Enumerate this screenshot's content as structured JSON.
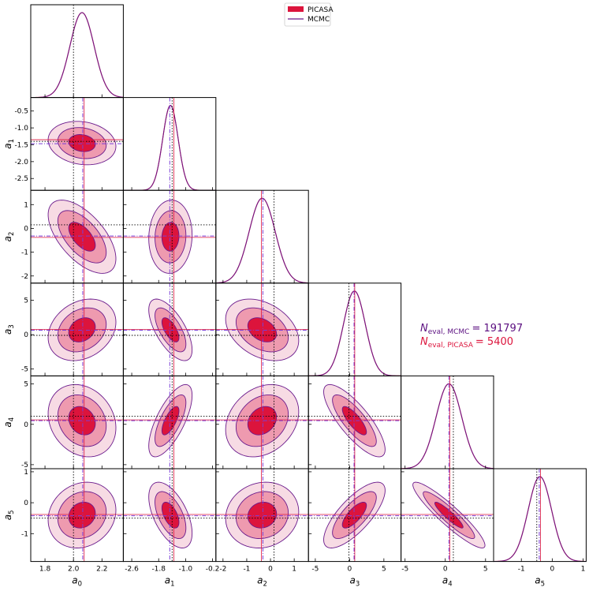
{
  "chart_data": {
    "type": "corner",
    "params": [
      "a_0",
      "a_1",
      "a_2",
      "a_3",
      "a_4",
      "a_5"
    ],
    "param_labels": [
      {
        "base": "a",
        "sub": "0"
      },
      {
        "base": "a",
        "sub": "1"
      },
      {
        "base": "a",
        "sub": "2"
      },
      {
        "base": "a",
        "sub": "3"
      },
      {
        "base": "a",
        "sub": "4"
      },
      {
        "base": "a",
        "sub": "5"
      }
    ],
    "ranges": [
      [
        1.7,
        2.35
      ],
      [
        -2.85,
        -0.1
      ],
      [
        -2.3,
        1.6
      ],
      [
        -6.0,
        7.5
      ],
      [
        -5.5,
        6.0
      ],
      [
        -1.9,
        1.1
      ]
    ],
    "xticks": [
      [
        1.8,
        2.0,
        2.2
      ],
      [
        -2.6,
        -1.8,
        -1.0,
        -0.2
      ],
      [
        -2,
        -1,
        0,
        1
      ],
      [
        -5,
        0,
        5
      ],
      [
        -5,
        0,
        5
      ],
      [
        -1,
        0,
        1
      ]
    ],
    "yticks": [
      [],
      [
        -0.5,
        -1.0,
        -1.5,
        -2.0,
        -2.5
      ],
      [
        1,
        0,
        -1,
        -2
      ],
      [
        5,
        0,
        -5
      ],
      [
        5,
        0,
        -5
      ],
      [
        1,
        0,
        -1
      ]
    ],
    "xtick_labels": [
      [
        "1.8",
        "2.0",
        "2.2"
      ],
      [
        "-2.6",
        "-1.8",
        "-1.0",
        "-0.2"
      ],
      [
        "-2",
        "-1",
        "0",
        "1"
      ],
      [
        "-5",
        "0",
        "5"
      ],
      [
        "-5",
        "0",
        "5"
      ],
      [
        "-1",
        "0",
        "1"
      ]
    ],
    "ytick_labels": [
      [],
      [
        "-0.5",
        "-1.0",
        "-1.5",
        "-2.0",
        "-2.5"
      ],
      [
        "1",
        "0",
        "-1",
        "-2"
      ],
      [
        "5",
        "0",
        "-5"
      ],
      [
        "5",
        "0",
        "-5"
      ],
      [
        "1",
        "0",
        "-1"
      ]
    ],
    "means": [
      2.06,
      -1.45,
      -0.35,
      0.7,
      0.45,
      -0.4
    ],
    "sigmas": [
      0.085,
      0.23,
      0.55,
      1.6,
      1.6,
      0.38
    ],
    "truth": [
      2.0,
      -1.4,
      0.15,
      -0.1,
      1.0,
      -0.5
    ],
    "mcmc_mean": [
      2.065,
      -1.47,
      -0.32,
      0.65,
      0.45,
      -0.42
    ],
    "picasa_mean": [
      2.075,
      -1.35,
      -0.38,
      0.75,
      0.55,
      -0.38
    ],
    "correlations": [
      [
        0,
        1,
        -0.15
      ],
      [
        0,
        2,
        -0.6
      ],
      [
        0,
        3,
        0.25
      ],
      [
        0,
        4,
        -0.2
      ],
      [
        0,
        5,
        0.15
      ],
      [
        1,
        2,
        0.05
      ],
      [
        1,
        3,
        -0.65
      ],
      [
        1,
        4,
        0.7
      ],
      [
        1,
        5,
        -0.55
      ],
      [
        2,
        3,
        -0.35
      ],
      [
        2,
        4,
        0.25
      ],
      [
        2,
        5,
        0.1
      ],
      [
        3,
        4,
        -0.8
      ],
      [
        3,
        5,
        0.75
      ],
      [
        4,
        5,
        -0.92
      ]
    ],
    "series": [
      {
        "name": "PICASA",
        "color": "#dc143c"
      },
      {
        "name": "MCMC",
        "color": "#6a1a8c"
      }
    ],
    "annotations": [
      {
        "prefix": "N",
        "sub": "eval, MCMC",
        "value": "= 191797",
        "color": "#5b0f80"
      },
      {
        "prefix": "N",
        "sub": "eval, PICASA",
        "value": "= 5400",
        "color": "#dc143c"
      }
    ]
  }
}
